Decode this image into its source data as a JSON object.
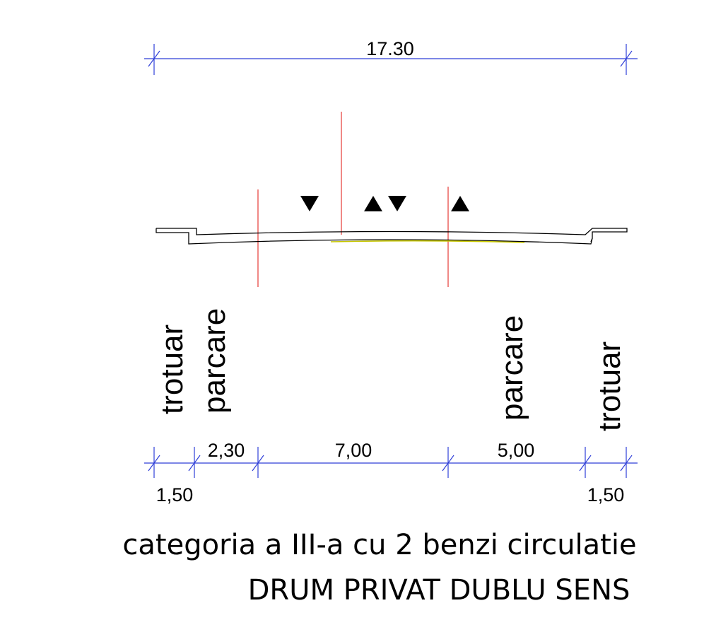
{
  "overall_dimension": "17.30",
  "zones": {
    "left_sidewalk": "trotuar",
    "left_parking": "parcare",
    "right_parking": "parcare",
    "right_sidewalk": "trotuar"
  },
  "dimensions": {
    "left_sidewalk": "1,50",
    "left_parking": "2,30",
    "carriageway": "7,00",
    "right_parking": "5,00",
    "right_sidewalk": "1,50"
  },
  "title": {
    "line1": "categoria a III-a cu 2 benzi circulatie",
    "line2": "DRUM PRIVAT DUBLU SENS"
  },
  "colors": {
    "dimension_line": "#2f3fd8",
    "axis_line": "#e53935",
    "profile_line": "#000000",
    "pavement_accent": "#c8c800",
    "lane_arrow": "#000000"
  },
  "lane_arrows": [
    "down-arrow",
    "up-arrow",
    "down-arrow",
    "up-arrow"
  ]
}
